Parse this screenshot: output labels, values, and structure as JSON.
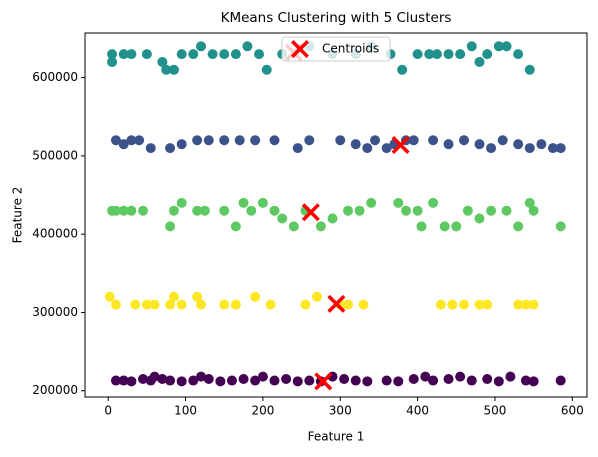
{
  "chart_data": {
    "type": "scatter",
    "title": "KMeans Clustering with 5 Clusters",
    "xlabel": "Feature 1",
    "ylabel": "Feature 2",
    "xlim": [
      -30,
      619
    ],
    "ylim": [
      192000,
      657000
    ],
    "xticks": [
      0,
      100,
      200,
      300,
      400,
      500,
      600
    ],
    "yticks": [
      200000,
      300000,
      400000,
      500000,
      600000
    ],
    "grid": false,
    "legend": "upper center",
    "series": [
      {
        "color": "#440154",
        "marker": "circle",
        "x": [
          10,
          20,
          30,
          45,
          55,
          60,
          70,
          80,
          95,
          110,
          120,
          130,
          145,
          160,
          175,
          190,
          200,
          215,
          230,
          245,
          260,
          275,
          290,
          305,
          320,
          335,
          360,
          375,
          395,
          410,
          420,
          440,
          455,
          470,
          490,
          505,
          520,
          540,
          550,
          585
        ],
        "values": [
          213000,
          213000,
          212000,
          215000,
          213000,
          218000,
          215000,
          213000,
          212000,
          213000,
          218000,
          215000,
          212000,
          213000,
          215000,
          213000,
          218000,
          213000,
          215000,
          212000,
          213000,
          212000,
          218000,
          215000,
          213000,
          212000,
          213000,
          212000,
          215000,
          218000,
          213000,
          215000,
          218000,
          213000,
          215000,
          212000,
          218000,
          213000,
          212000,
          213000
        ]
      },
      {
        "color": "#3b528b",
        "marker": "circle",
        "x": [
          10,
          20,
          30,
          40,
          55,
          80,
          95,
          115,
          130,
          150,
          170,
          190,
          215,
          245,
          260,
          300,
          320,
          335,
          345,
          360,
          370,
          385,
          395,
          420,
          440,
          460,
          480,
          495,
          510,
          530,
          545,
          560,
          575,
          585
        ],
        "values": [
          520000,
          515000,
          520000,
          520000,
          510000,
          510000,
          515000,
          520000,
          520000,
          520000,
          520000,
          520000,
          520000,
          510000,
          520000,
          520000,
          515000,
          510000,
          520000,
          510000,
          515000,
          520000,
          520000,
          520000,
          515000,
          520000,
          515000,
          510000,
          520000,
          515000,
          510000,
          515000,
          510000,
          510000
        ]
      },
      {
        "color": "#21918c",
        "marker": "circle",
        "x": [
          5,
          5,
          20,
          30,
          50,
          70,
          75,
          85,
          95,
          110,
          120,
          135,
          150,
          165,
          180,
          195,
          205,
          225,
          260,
          290,
          320,
          340,
          365,
          380,
          400,
          415,
          425,
          440,
          455,
          470,
          480,
          490,
          505,
          515,
          530,
          545
        ],
        "values": [
          620000,
          630000,
          630000,
          630000,
          630000,
          620000,
          610000,
          610000,
          630000,
          630000,
          640000,
          630000,
          630000,
          630000,
          640000,
          630000,
          610000,
          630000,
          640000,
          630000,
          630000,
          640000,
          630000,
          610000,
          630000,
          630000,
          630000,
          630000,
          630000,
          640000,
          620000,
          630000,
          640000,
          640000,
          630000,
          610000
        ]
      },
      {
        "color": "#5ec962",
        "marker": "circle",
        "x": [
          5,
          10,
          20,
          30,
          45,
          80,
          85,
          95,
          115,
          125,
          150,
          165,
          175,
          185,
          200,
          215,
          225,
          240,
          255,
          275,
          290,
          310,
          325,
          340,
          375,
          385,
          400,
          405,
          420,
          435,
          450,
          465,
          480,
          495,
          515,
          530,
          545,
          550,
          585
        ],
        "values": [
          430000,
          430000,
          430000,
          430000,
          430000,
          410000,
          430000,
          440000,
          430000,
          430000,
          430000,
          410000,
          440000,
          430000,
          440000,
          430000,
          420000,
          410000,
          430000,
          410000,
          420000,
          430000,
          430000,
          440000,
          440000,
          430000,
          430000,
          410000,
          440000,
          410000,
          410000,
          430000,
          420000,
          430000,
          430000,
          410000,
          440000,
          430000,
          410000
        ]
      },
      {
        "color": "#fde725",
        "marker": "circle",
        "x": [
          2,
          10,
          35,
          50,
          60,
          80,
          85,
          95,
          115,
          120,
          150,
          165,
          190,
          210,
          255,
          270,
          300,
          310,
          330,
          430,
          445,
          460,
          480,
          490,
          530,
          540,
          550
        ],
        "values": [
          320000,
          310000,
          310000,
          310000,
          310000,
          310000,
          320000,
          310000,
          320000,
          310000,
          310000,
          310000,
          320000,
          310000,
          310000,
          320000,
          310000,
          310000,
          310000,
          310000,
          310000,
          310000,
          310000,
          310000,
          310000,
          310000,
          310000
        ]
      },
      {
        "name": "Centroids",
        "color": "#ff0000",
        "marker": "X",
        "x": [
          240,
          378,
          262,
          295,
          278
        ],
        "values": [
          632000,
          514000,
          428000,
          311000,
          212000
        ]
      }
    ]
  }
}
